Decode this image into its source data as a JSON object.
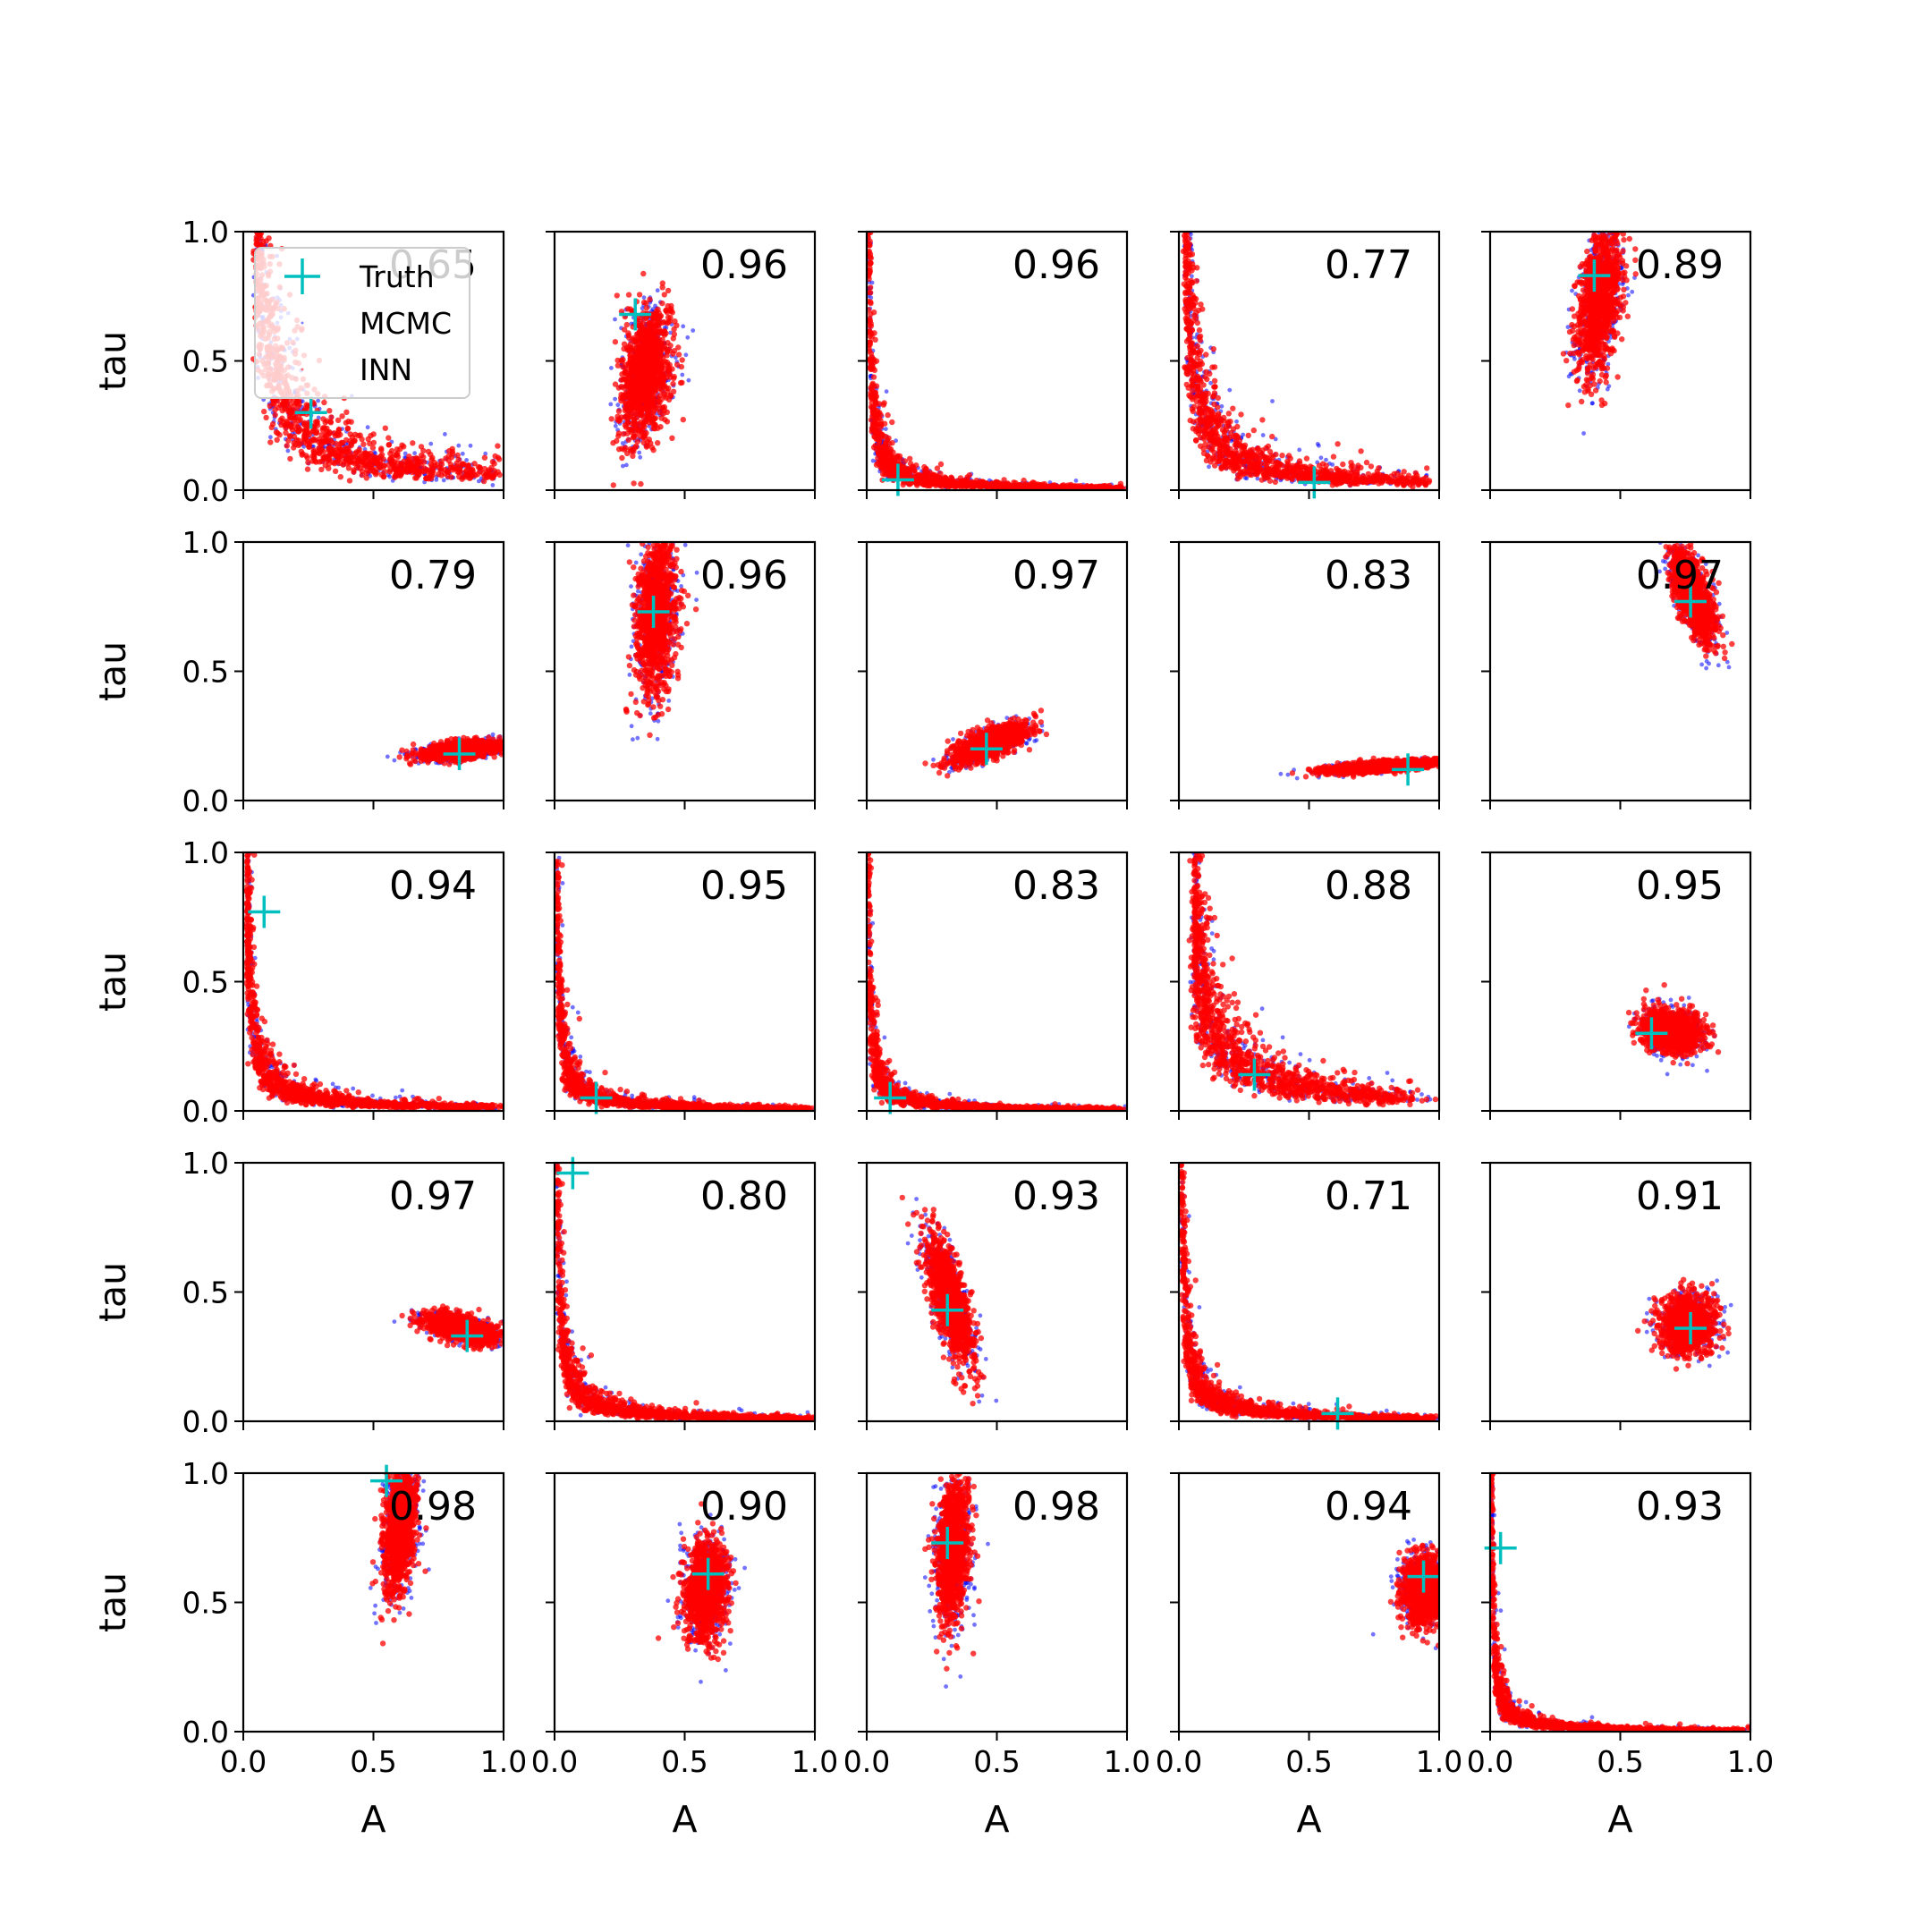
{
  "chart_data": {
    "type": "scatter",
    "grid": false,
    "rows": 5,
    "cols": 5,
    "xlabel": "A",
    "ylabel": "tau",
    "xlim": [
      0,
      1
    ],
    "ylim": [
      0,
      1
    ],
    "xticks": [
      "0.0",
      "0.5",
      "1.0"
    ],
    "yticks": [
      "0.0",
      "0.5",
      "1.0"
    ],
    "legend": {
      "location": "upper-left",
      "panel": 0,
      "entries": [
        {
          "label": "Truth",
          "marker": "plus",
          "color": "#00bfbf"
        },
        {
          "label": "MCMC",
          "marker": "dot",
          "color": "#0000ff"
        },
        {
          "label": "INN",
          "marker": "dot",
          "color": "#ff0000"
        }
      ]
    },
    "colors": {
      "truth": "#00bfbf",
      "mcmc": "#0000ff",
      "inn": "#ff0000"
    },
    "panels": [
      {
        "score": "0.65",
        "truth": [
          0.26,
          0.3
        ],
        "shape": "curve",
        "k": 0.06,
        "xmin": 0.05,
        "xmax": 0.97
      },
      {
        "score": "0.96",
        "truth": [
          0.31,
          0.68
        ],
        "shape": "blob",
        "cx": 0.35,
        "cy": 0.45,
        "rx": 0.09,
        "ry": 0.25,
        "rot": -0.12
      },
      {
        "score": "0.96",
        "truth": [
          0.12,
          0.04
        ],
        "shape": "curve",
        "k": 0.009,
        "xmin": 0.006,
        "xmax": 0.98
      },
      {
        "score": "0.77",
        "truth": [
          0.52,
          0.03
        ],
        "shape": "curve",
        "k": 0.03,
        "xmin": 0.025,
        "xmax": 0.95
      },
      {
        "score": "0.89",
        "truth": [
          0.4,
          0.83
        ],
        "shape": "blob",
        "cx": 0.42,
        "cy": 0.74,
        "rx": 0.075,
        "ry": 0.3,
        "rot": -0.12
      },
      {
        "score": "0.79",
        "truth": [
          0.83,
          0.18
        ],
        "shape": "blob",
        "cx": 0.84,
        "cy": 0.195,
        "rx": 0.16,
        "ry": 0.032,
        "rot": 0.12
      },
      {
        "score": "0.96",
        "truth": [
          0.38,
          0.73
        ],
        "shape": "blob",
        "cx": 0.39,
        "cy": 0.72,
        "rx": 0.075,
        "ry": 0.3,
        "rot": -0.05
      },
      {
        "score": "0.97",
        "truth": [
          0.46,
          0.2
        ],
        "shape": "blob",
        "cx": 0.47,
        "cy": 0.22,
        "rx": 0.15,
        "ry": 0.05,
        "rot": 0.42
      },
      {
        "score": "0.83",
        "truth": [
          0.88,
          0.12
        ],
        "shape": "blob",
        "cx": 0.78,
        "cy": 0.132,
        "rx": 0.22,
        "ry": 0.02,
        "rot": 0.07
      },
      {
        "score": "0.97",
        "truth": [
          0.77,
          0.77
        ],
        "shape": "blob",
        "cx": 0.78,
        "cy": 0.79,
        "rx": 0.06,
        "ry": 0.18,
        "rot": 0.35
      },
      {
        "score": "0.94",
        "truth": [
          0.08,
          0.77
        ],
        "shape": "curve",
        "k": 0.014,
        "xmin": 0.015,
        "xmax": 0.97
      },
      {
        "score": "0.95",
        "truth": [
          0.16,
          0.05
        ],
        "shape": "curve",
        "k": 0.009,
        "xmin": 0.006,
        "xmax": 0.98
      },
      {
        "score": "0.83",
        "truth": [
          0.09,
          0.05
        ],
        "shape": "curve",
        "k": 0.007,
        "xmin": 0.005,
        "xmax": 0.98
      },
      {
        "score": "0.88",
        "truth": [
          0.29,
          0.14
        ],
        "shape": "curve",
        "k": 0.045,
        "xmin": 0.06,
        "xmax": 0.9
      },
      {
        "score": "0.95",
        "truth": [
          0.62,
          0.3
        ],
        "shape": "blob",
        "cx": 0.7,
        "cy": 0.31,
        "rx": 0.11,
        "ry": 0.08,
        "rot": -0.3
      },
      {
        "score": "0.97",
        "truth": [
          0.86,
          0.33
        ],
        "shape": "blob",
        "cx": 0.84,
        "cy": 0.36,
        "rx": 0.14,
        "ry": 0.045,
        "rot": -0.25
      },
      {
        "score": "0.80",
        "truth": [
          0.07,
          0.96
        ],
        "shape": "curve",
        "k": 0.011,
        "xmin": 0.006,
        "xmax": 0.98
      },
      {
        "score": "0.93",
        "truth": [
          0.31,
          0.43
        ],
        "shape": "blob",
        "cx": 0.32,
        "cy": 0.47,
        "rx": 0.06,
        "ry": 0.25,
        "rot": 0.28
      },
      {
        "score": "0.71",
        "truth": [
          0.61,
          0.03
        ],
        "shape": "curve",
        "k": 0.012,
        "xmin": 0.008,
        "xmax": 0.98
      },
      {
        "score": "0.91",
        "truth": [
          0.77,
          0.36
        ],
        "shape": "blob",
        "cx": 0.76,
        "cy": 0.38,
        "rx": 0.1,
        "ry": 0.11,
        "rot": 0.0
      },
      {
        "score": "0.98",
        "truth": [
          0.55,
          0.97
        ],
        "shape": "blob",
        "cx": 0.6,
        "cy": 0.79,
        "rx": 0.06,
        "ry": 0.24,
        "rot": -0.1
      },
      {
        "score": "0.90",
        "truth": [
          0.59,
          0.61
        ],
        "shape": "blob",
        "cx": 0.58,
        "cy": 0.55,
        "rx": 0.08,
        "ry": 0.19,
        "rot": -0.05
      },
      {
        "score": "0.98",
        "truth": [
          0.31,
          0.73
        ],
        "shape": "blob",
        "cx": 0.33,
        "cy": 0.7,
        "rx": 0.06,
        "ry": 0.28,
        "rot": -0.05
      },
      {
        "score": "0.94",
        "truth": [
          0.94,
          0.6
        ],
        "shape": "blob",
        "cx": 0.94,
        "cy": 0.55,
        "rx": 0.08,
        "ry": 0.13,
        "rot": 0.0
      },
      {
        "score": "0.93",
        "truth": [
          0.04,
          0.71
        ],
        "shape": "curve",
        "k": 0.006,
        "xmin": 0.005,
        "xmax": 0.985
      }
    ]
  }
}
